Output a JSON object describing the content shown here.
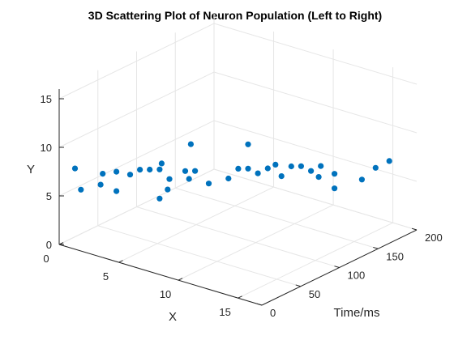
{
  "chart_data": {
    "type": "scatter",
    "title": "3D Scattering Plot of Neuron Population (Left to Right)",
    "xlabel": "X",
    "ylabel": "Y",
    "zlabel": "Time/ms",
    "xlim": [
      0,
      17
    ],
    "ylim": [
      0,
      16
    ],
    "zlim": [
      0,
      200
    ],
    "x_ticks": [
      "0",
      "5",
      "10",
      "15"
    ],
    "y_ticks": [
      "0",
      "5",
      "10",
      "15"
    ],
    "z_ticks": [
      "0",
      "50",
      "100",
      "150",
      "200"
    ],
    "grid": true,
    "color": "#0072BD",
    "points": [
      {
        "x": 1,
        "y": 8,
        "z": 5
      },
      {
        "x": 1.5,
        "y": 6,
        "z": 5
      },
      {
        "x": 2.5,
        "y": 6.5,
        "z": 15
      },
      {
        "x": 3,
        "y": 8,
        "z": 10
      },
      {
        "x": 3.5,
        "y": 6,
        "z": 20
      },
      {
        "x": 3.5,
        "y": 8,
        "z": 20
      },
      {
        "x": 4,
        "y": 7.5,
        "z": 30
      },
      {
        "x": 4.5,
        "y": 8,
        "z": 35
      },
      {
        "x": 5,
        "y": 8,
        "z": 40
      },
      {
        "x": 5.5,
        "y": 8,
        "z": 45
      },
      {
        "x": 6,
        "y": 9,
        "z": 40
      },
      {
        "x": 6.5,
        "y": 6.5,
        "z": 40
      },
      {
        "x": 7,
        "y": 8,
        "z": 55
      },
      {
        "x": 5.5,
        "y": 5,
        "z": 45
      },
      {
        "x": 6,
        "y": 7,
        "z": 50
      },
      {
        "x": 7,
        "y": 7,
        "z": 60
      },
      {
        "x": 6.5,
        "y": 10,
        "z": 70
      },
      {
        "x": 7.5,
        "y": 8,
        "z": 60
      },
      {
        "x": 8,
        "y": 6.5,
        "z": 70
      },
      {
        "x": 9,
        "y": 7,
        "z": 80
      },
      {
        "x": 9.5,
        "y": 8,
        "z": 85
      },
      {
        "x": 10,
        "y": 8,
        "z": 90
      },
      {
        "x": 10.5,
        "y": 7.5,
        "z": 95
      },
      {
        "x": 11,
        "y": 8,
        "z": 100
      },
      {
        "x": 10,
        "y": 10.5,
        "z": 90
      },
      {
        "x": 11,
        "y": 8,
        "z": 110
      },
      {
        "x": 11.5,
        "y": 7,
        "z": 110
      },
      {
        "x": 12,
        "y": 8,
        "z": 115
      },
      {
        "x": 12.5,
        "y": 8,
        "z": 120
      },
      {
        "x": 13,
        "y": 7.5,
        "z": 125
      },
      {
        "x": 13,
        "y": 6.5,
        "z": 135
      },
      {
        "x": 13.5,
        "y": 8,
        "z": 130
      },
      {
        "x": 14,
        "y": 7,
        "z": 140
      },
      {
        "x": 14,
        "y": 5.5,
        "z": 140
      },
      {
        "x": 15,
        "y": 6,
        "z": 160
      },
      {
        "x": 15.5,
        "y": 7,
        "z": 170
      },
      {
        "x": 16,
        "y": 7.5,
        "z": 180
      }
    ]
  }
}
